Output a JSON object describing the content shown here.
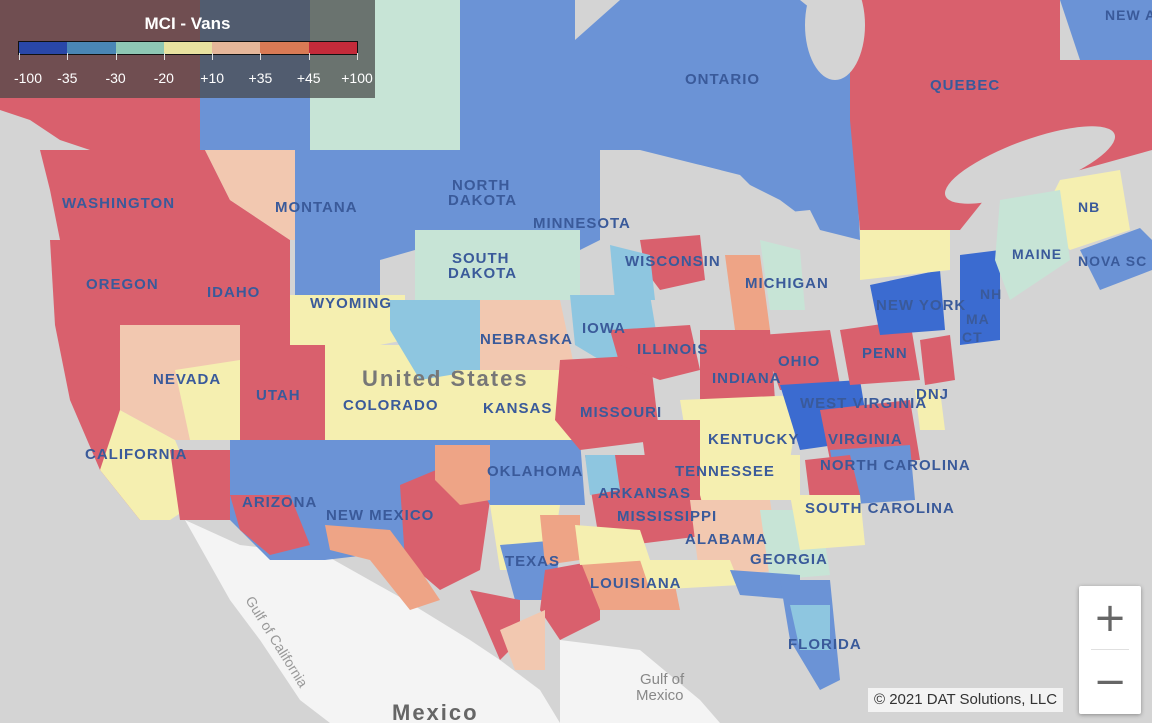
{
  "legend": {
    "title": "MCI - Vans",
    "ticks": [
      "-100",
      "-35",
      "-30",
      "-20",
      "+10",
      "+35",
      "+45",
      "+100"
    ],
    "colors": [
      "#2947a8",
      "#4a86b5",
      "#8ec7b4",
      "#e8e2a0",
      "#e6b79a",
      "#d97a55",
      "#c42b3a"
    ]
  },
  "zoom": {
    "in_label": "+",
    "out_label": "−"
  },
  "attribution": "© 2021 DAT Solutions, LLC",
  "map_labels": {
    "quebec": "QUEBEC",
    "ontario": "ONTARIO",
    "new_and": "NEW AND",
    "nb": "NB",
    "nova_scotia": "NOVA SC",
    "maine": "MAINE",
    "nh": "NH",
    "ma": "MA",
    "ct": "CT",
    "new_york": "NEW YORK",
    "penn": "PENN",
    "dnj": "DNJ",
    "west_virginia": "WEST VIRGINIA",
    "virginia": "VIRGINIA",
    "north_carolina": "NORTH CAROLINA",
    "south_carolina": "SOUTH CAROLINA",
    "georgia": "GEORGIA",
    "florida": "FLORIDA",
    "alabama": "ALABAMA",
    "mississippi": "MISSISSIPPI",
    "tennessee": "TENNESSEE",
    "kentucky": "KENTUCKY",
    "ohio": "OHIO",
    "indiana": "INDIANA",
    "illinois": "ILLINOIS",
    "michigan": "MICHIGAN",
    "wisconsin": "WISCONSIN",
    "minnesota": "MINNESOTA",
    "north_dakota": "NORTH DAKOTA",
    "south_dakota": "SOUTH DAKOTA",
    "iowa": "IOWA",
    "nebraska": "NEBRASKA",
    "missouri": "MISSOURI",
    "kansas": "KANSAS",
    "oklahoma": "OKLAHOMA",
    "arkansas": "ARKANSAS",
    "louisiana": "LOUISIANA",
    "texas": "TEXAS",
    "new_mexico": "NEW MEXICO",
    "colorado": "COLORADO",
    "wyoming": "WYOMING",
    "montana": "MONTANA",
    "idaho": "IDAHO",
    "washington": "WASHINGTON",
    "oregon": "OREGON",
    "nevada": "NEVADA",
    "utah": "UTAH",
    "arizona": "ARIZONA",
    "california": "CALIFORNIA",
    "united_states": "United States",
    "mexico": "Mexico",
    "gulf_of_mexico": "Gulf of Mexico",
    "gulf_of_california": "Gulf of California"
  }
}
